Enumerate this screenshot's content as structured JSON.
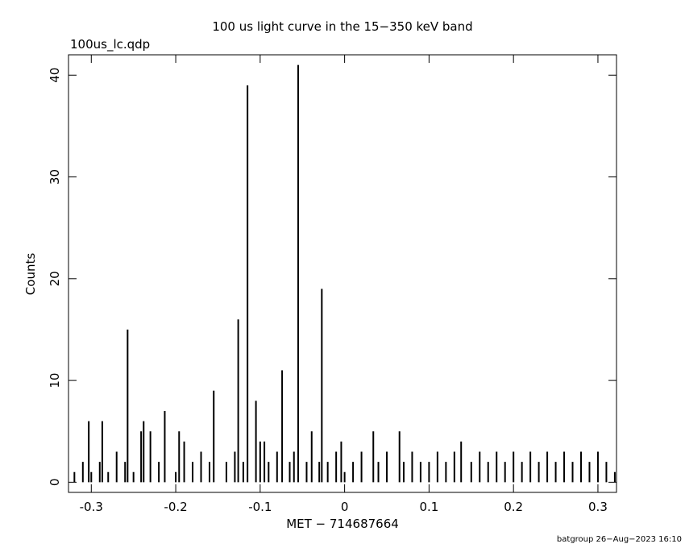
{
  "chart_data": {
    "type": "bar",
    "title": "100 us light curve in the 15−350 keV band",
    "subtitle": "100us_lc.qdp",
    "x_label": "MET − 714687664",
    "y_label": "Counts",
    "footer": "batgroup 26−Aug−2023 16:10",
    "color": "#000000",
    "x": [
      -0.32,
      -0.31,
      -0.303,
      -0.3,
      -0.29,
      -0.287,
      -0.28,
      -0.27,
      -0.26,
      -0.257,
      -0.25,
      -0.241,
      -0.238,
      -0.23,
      -0.22,
      -0.213,
      -0.2,
      -0.196,
      -0.19,
      -0.18,
      -0.17,
      -0.16,
      -0.155,
      -0.14,
      -0.13,
      -0.126,
      -0.12,
      -0.115,
      -0.105,
      -0.1,
      -0.095,
      -0.09,
      -0.08,
      -0.074,
      -0.065,
      -0.06,
      -0.055,
      -0.045,
      -0.039,
      -0.03,
      -0.027,
      -0.02,
      -0.01,
      -0.004,
      0.0,
      0.01,
      0.02,
      0.034,
      0.04,
      0.05,
      0.065,
      0.07,
      0.08,
      0.09,
      0.1,
      0.11,
      0.12,
      0.13,
      0.138,
      0.15,
      0.16,
      0.17,
      0.18,
      0.19,
      0.2,
      0.21,
      0.22,
      0.23,
      0.24,
      0.25,
      0.26,
      0.27,
      0.28,
      0.29,
      0.3,
      0.31,
      0.32
    ],
    "values": [
      1,
      2,
      6,
      1,
      2,
      6,
      1,
      3,
      2,
      15,
      1,
      5,
      6,
      5,
      2,
      7,
      1,
      5,
      4,
      2,
      3,
      2,
      9,
      2,
      3,
      16,
      2,
      39,
      8,
      4,
      4,
      2,
      3,
      11,
      2,
      3,
      41,
      2,
      5,
      2,
      19,
      2,
      3,
      4,
      1,
      2,
      3,
      5,
      2,
      3,
      5,
      2,
      3,
      2,
      2,
      3,
      2,
      3,
      4,
      2,
      3,
      2,
      3,
      2,
      3,
      2,
      3,
      2,
      3,
      2,
      3,
      2,
      3,
      2,
      3,
      2,
      1
    ],
    "xlim": [
      -0.327,
      0.322
    ],
    "ylim": [
      -1,
      42
    ],
    "xticks": [
      -0.3,
      -0.2,
      -0.1,
      0,
      0.1,
      0.2,
      0.3
    ],
    "yticks": [
      0,
      10,
      20,
      30,
      40
    ]
  }
}
